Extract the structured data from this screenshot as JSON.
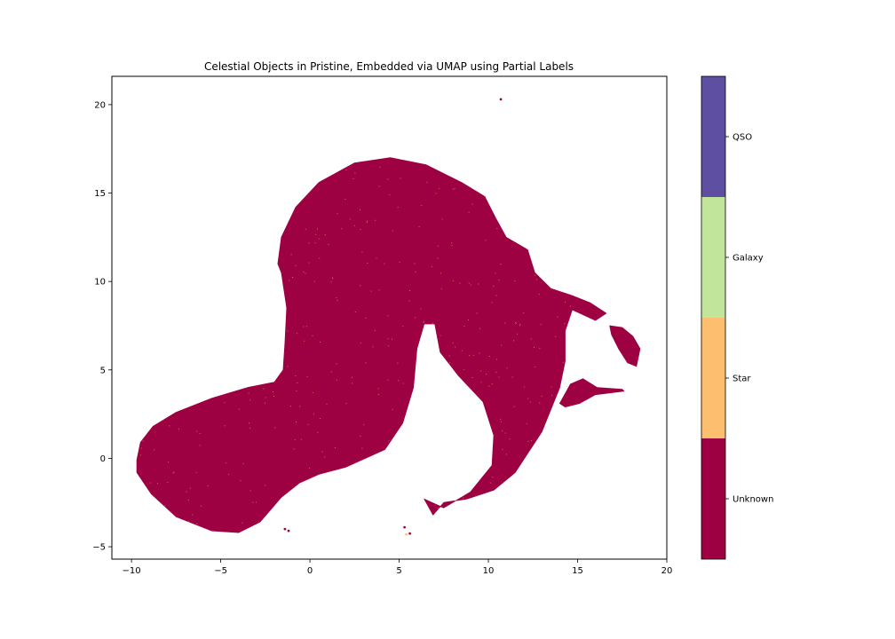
{
  "chart_data": {
    "type": "scatter",
    "title": "Celestial Objects in Pristine, Embedded via UMAP using Partial Labels",
    "xlabel": "",
    "ylabel": "",
    "xlim": [
      -11.1,
      20
    ],
    "ylim": [
      -5.7,
      21.6
    ],
    "xticks": [
      -10,
      -5,
      0,
      5,
      10,
      15,
      20
    ],
    "yticks": [
      -5,
      0,
      5,
      10,
      15,
      20
    ],
    "xtick_labels": [
      "−10",
      "−5",
      "0",
      "5",
      "10",
      "15",
      "20"
    ],
    "ytick_labels": [
      "−5",
      "0",
      "5",
      "10",
      "15",
      "20"
    ],
    "grid": false,
    "colorbar": {
      "categories": [
        "Unknown",
        "Star",
        "Galaxy",
        "QSO"
      ],
      "colors": [
        "#9e0142",
        "#fdbf6f",
        "#c2e59c",
        "#5e4fa2"
      ]
    },
    "regions": [
      {
        "name": "main-cloud",
        "label": "Unknown",
        "outline": [
          [
            -9.7,
            -0.1
          ],
          [
            -9.5,
            0.9
          ],
          [
            -8.8,
            1.8
          ],
          [
            -7.5,
            2.6
          ],
          [
            -5.5,
            3.4
          ],
          [
            -3.5,
            4.0
          ],
          [
            -2.0,
            4.3
          ],
          [
            -1.5,
            5.0
          ],
          [
            -1.4,
            6.5
          ],
          [
            -1.3,
            8.5
          ],
          [
            -1.6,
            10.5
          ],
          [
            -1.8,
            11.0
          ],
          [
            -1.6,
            12.5
          ],
          [
            -0.8,
            14.2
          ],
          [
            0.5,
            15.6
          ],
          [
            2.5,
            16.7
          ],
          [
            4.5,
            17.0
          ],
          [
            6.5,
            16.6
          ],
          [
            8.5,
            15.6
          ],
          [
            9.8,
            14.8
          ],
          [
            10.4,
            13.6
          ],
          [
            11.0,
            12.5
          ],
          [
            12.2,
            11.8
          ],
          [
            12.6,
            10.5
          ],
          [
            13.5,
            9.6
          ],
          [
            14.7,
            9.2
          ],
          [
            15.7,
            8.8
          ],
          [
            16.6,
            8.2
          ],
          [
            16.0,
            7.8
          ],
          [
            14.7,
            8.4
          ],
          [
            14.3,
            7.2
          ],
          [
            14.3,
            5.5
          ],
          [
            14.0,
            4.0
          ],
          [
            13.0,
            1.5
          ],
          [
            11.5,
            -0.8
          ],
          [
            10.3,
            -1.8
          ],
          [
            8.8,
            -2.3
          ],
          [
            7.5,
            -2.5
          ],
          [
            6.9,
            -3.2
          ],
          [
            6.4,
            -2.3
          ],
          [
            7.5,
            -2.8
          ],
          [
            9.0,
            -1.9
          ],
          [
            10.2,
            -0.4
          ],
          [
            10.3,
            1.3
          ],
          [
            9.7,
            3.2
          ],
          [
            8.3,
            4.7
          ],
          [
            7.3,
            6.0
          ],
          [
            7.0,
            7.6
          ],
          [
            6.4,
            7.6
          ],
          [
            6.0,
            6.2
          ],
          [
            5.8,
            4.0
          ],
          [
            5.2,
            2.0
          ],
          [
            4.2,
            0.5
          ],
          [
            2.0,
            -0.5
          ],
          [
            0.5,
            -0.9
          ],
          [
            -0.6,
            -1.4
          ],
          [
            -1.6,
            -2.2
          ],
          [
            -2.8,
            -3.6
          ],
          [
            -4.0,
            -4.2
          ],
          [
            -5.5,
            -4.1
          ],
          [
            -7.5,
            -3.3
          ],
          [
            -8.9,
            -2.0
          ],
          [
            -9.7,
            -0.8
          ]
        ]
      },
      {
        "name": "right-blob",
        "label": "Unknown",
        "outline": [
          [
            16.8,
            7.5
          ],
          [
            17.5,
            7.4
          ],
          [
            18.1,
            6.9
          ],
          [
            18.5,
            6.2
          ],
          [
            18.3,
            5.2
          ],
          [
            17.8,
            5.4
          ],
          [
            17.3,
            6.2
          ],
          [
            16.9,
            7.0
          ]
        ]
      },
      {
        "name": "small-island",
        "label": "Unknown",
        "outline": [
          [
            14.0,
            3.1
          ],
          [
            14.6,
            4.2
          ],
          [
            15.3,
            4.5
          ],
          [
            16.1,
            4.0
          ],
          [
            17.5,
            3.9
          ],
          [
            17.6,
            3.8
          ],
          [
            16.0,
            3.6
          ],
          [
            15.1,
            3.1
          ],
          [
            14.3,
            2.9
          ]
        ]
      }
    ],
    "outliers": [
      {
        "x": 10.7,
        "y": 20.3,
        "label": "Unknown"
      },
      {
        "x": -1.4,
        "y": -4.0,
        "label": "Unknown"
      },
      {
        "x": -1.2,
        "y": -4.1,
        "label": "Unknown"
      },
      {
        "x": 5.4,
        "y": -4.3,
        "label": "Star"
      },
      {
        "x": 5.6,
        "y": -4.25,
        "label": "Unknown"
      },
      {
        "x": 5.3,
        "y": -3.9,
        "label": "Unknown"
      }
    ]
  }
}
